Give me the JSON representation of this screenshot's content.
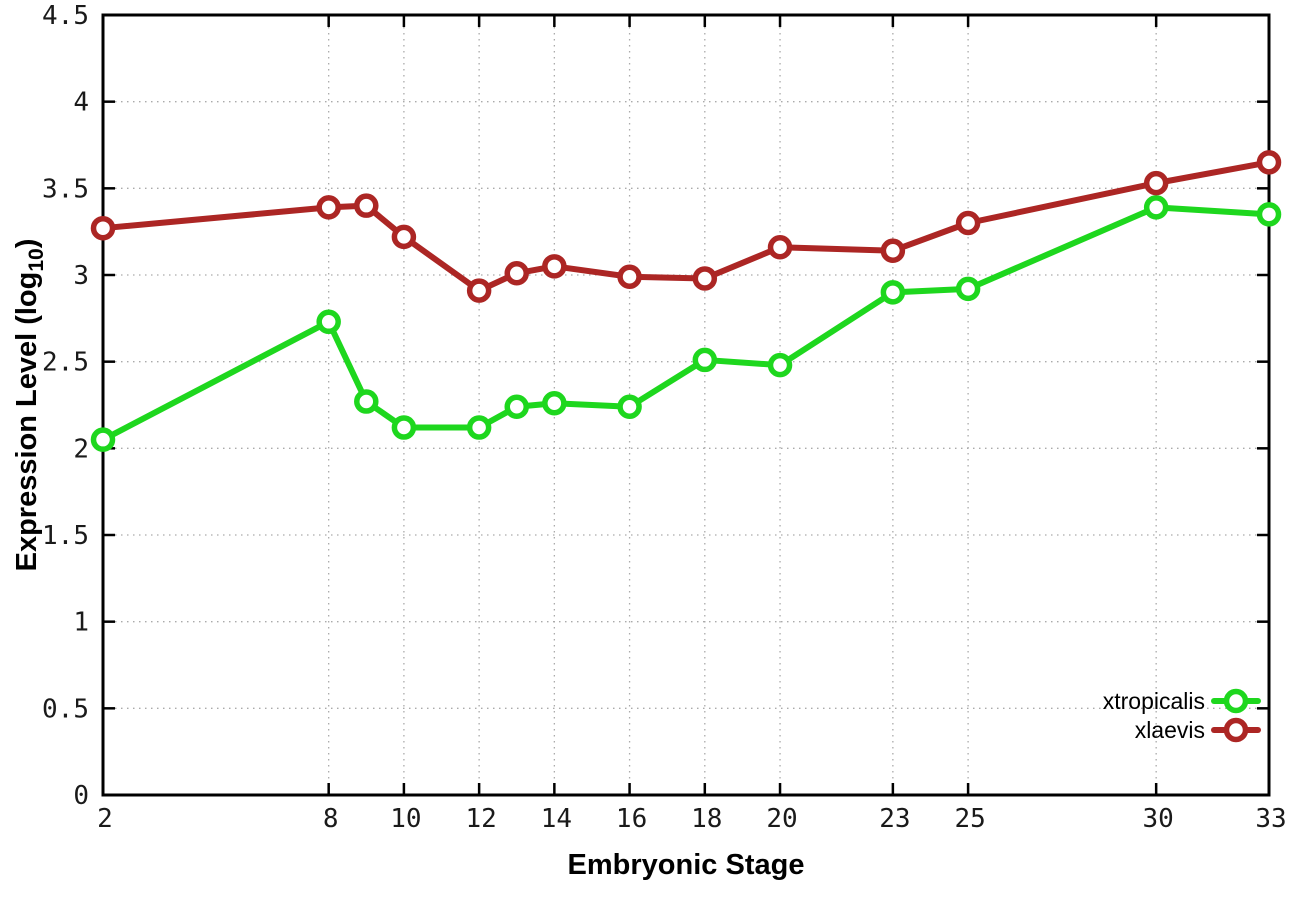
{
  "chart_data": {
    "type": "line",
    "title": "",
    "xlabel": "Embryonic Stage",
    "ylabel": "Expression Level (log10)",
    "ylabel_parts": {
      "pre": "Expression Level (log",
      "sub": "10",
      "post": ")"
    },
    "x": [
      2,
      8,
      9,
      10,
      12,
      13,
      14,
      16,
      18,
      20,
      23,
      25,
      30,
      33
    ],
    "series": [
      {
        "name": "xtropicalis",
        "color": "#1ed71e",
        "values": [
          2.05,
          2.73,
          2.27,
          2.12,
          2.12,
          2.24,
          2.26,
          2.24,
          2.51,
          2.48,
          2.9,
          2.92,
          3.39,
          3.35
        ]
      },
      {
        "name": "xlaevis",
        "color": "#ac2624",
        "values": [
          3.27,
          3.39,
          3.4,
          3.22,
          2.91,
          3.01,
          3.05,
          2.99,
          2.98,
          3.16,
          3.14,
          3.3,
          3.53,
          3.65
        ]
      }
    ],
    "xlim": [
      2,
      33
    ],
    "ylim": [
      0,
      4.5
    ],
    "xticks": [
      2,
      8,
      10,
      12,
      14,
      16,
      18,
      20,
      23,
      25,
      30,
      33
    ],
    "xtick_labels": [
      "2",
      "8",
      "10",
      "12",
      "14",
      "16",
      "18",
      "20",
      "23",
      "25",
      "30",
      "33"
    ],
    "yticks": [
      0,
      0.5,
      1,
      1.5,
      2,
      2.5,
      3,
      3.5,
      4,
      4.5
    ],
    "ytick_labels": [
      "0",
      "0.5",
      "1",
      "1.5",
      "2",
      "2.5",
      "3",
      "3.5",
      "4",
      "4.5"
    ],
    "grid": true,
    "legend_position": "inside-bottom-right",
    "layout_colors": {
      "background": "#ffffff",
      "border": "#000000",
      "grid": "#aaaaaa",
      "tick_text": "#1a1a1a"
    }
  }
}
